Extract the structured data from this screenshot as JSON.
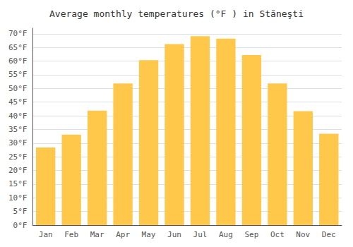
{
  "chart_data": {
    "type": "bar",
    "title": "Average monthly temperatures (°F ) in Stăneşti",
    "categories": [
      "Jan",
      "Feb",
      "Mar",
      "Apr",
      "May",
      "Jun",
      "Jul",
      "Aug",
      "Sep",
      "Oct",
      "Nov",
      "Dec"
    ],
    "values": [
      28.4,
      33.1,
      41.9,
      51.8,
      60.3,
      66.2,
      69.1,
      68.2,
      62.2,
      51.8,
      41.7,
      33.4
    ],
    "color": "#FFC84A",
    "ylim": [
      0,
      72
    ],
    "yticks": [
      {
        "value": 0,
        "label": "0°F"
      },
      {
        "value": 5,
        "label": "5°F"
      },
      {
        "value": 10,
        "label": "10°F"
      },
      {
        "value": 15,
        "label": "15°F"
      },
      {
        "value": 20,
        "label": "20°F"
      },
      {
        "value": 25,
        "label": "25°F"
      },
      {
        "value": 30,
        "label": "30°F"
      },
      {
        "value": 35,
        "label": "35°F"
      },
      {
        "value": 40,
        "label": "40°F"
      },
      {
        "value": 45,
        "label": "45°F"
      },
      {
        "value": 50,
        "label": "50°F"
      },
      {
        "value": 55,
        "label": "55°F"
      },
      {
        "value": 60,
        "label": "60°F"
      },
      {
        "value": 65,
        "label": "65°F"
      },
      {
        "value": 70,
        "label": "70°F"
      }
    ],
    "grid": true
  }
}
